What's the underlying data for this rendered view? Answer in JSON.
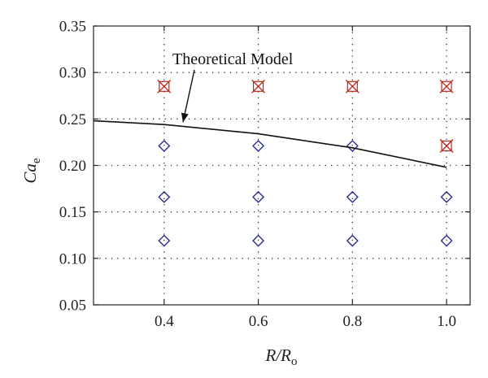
{
  "chart_data": {
    "type": "scatter",
    "title": "",
    "xlabel": {
      "main": "R/R",
      "sub": "o"
    },
    "ylabel": {
      "main": "Ca",
      "sub": "e"
    },
    "xlim": [
      0.25,
      1.05
    ],
    "ylim": [
      0.05,
      0.35
    ],
    "xticks": [
      0.4,
      0.6,
      0.8,
      1.0
    ],
    "xtick_labels": [
      "0.4",
      "0.6",
      "0.8",
      "1.0"
    ],
    "yticks": [
      0.05,
      0.1,
      0.15,
      0.2,
      0.25,
      0.3,
      0.35
    ],
    "ytick_labels": [
      "0.05",
      "0.10",
      "0.15",
      "0.20",
      "0.25",
      "0.30",
      "0.35"
    ],
    "grid": true,
    "grid_style": "dotted",
    "series": [
      {
        "marker": "diamond-open",
        "color": "#2b2f8f",
        "points": [
          {
            "x": 0.4,
            "y": 0.119
          },
          {
            "x": 0.4,
            "y": 0.166
          },
          {
            "x": 0.4,
            "y": 0.221
          },
          {
            "x": 0.6,
            "y": 0.119
          },
          {
            "x": 0.6,
            "y": 0.166
          },
          {
            "x": 0.6,
            "y": 0.221
          },
          {
            "x": 0.8,
            "y": 0.119
          },
          {
            "x": 0.8,
            "y": 0.166
          },
          {
            "x": 0.8,
            "y": 0.221
          },
          {
            "x": 1.0,
            "y": 0.119
          },
          {
            "x": 1.0,
            "y": 0.166
          }
        ]
      },
      {
        "marker": "x-boxed",
        "color": "#c0281f",
        "points": [
          {
            "x": 0.4,
            "y": 0.285
          },
          {
            "x": 0.6,
            "y": 0.285
          },
          {
            "x": 0.8,
            "y": 0.285
          },
          {
            "x": 1.0,
            "y": 0.285
          },
          {
            "x": 1.0,
            "y": 0.221
          }
        ]
      },
      {
        "type": "line",
        "color": "#111111",
        "points": [
          {
            "x": 0.25,
            "y": 0.248
          },
          {
            "x": 0.4,
            "y": 0.244
          },
          {
            "x": 0.6,
            "y": 0.234
          },
          {
            "x": 0.8,
            "y": 0.219
          },
          {
            "x": 1.0,
            "y": 0.198
          }
        ]
      }
    ],
    "annotations": [
      {
        "text": "Theoretical Model",
        "arrow_to": {
          "x": 0.44,
          "y": 0.243
        }
      }
    ]
  }
}
